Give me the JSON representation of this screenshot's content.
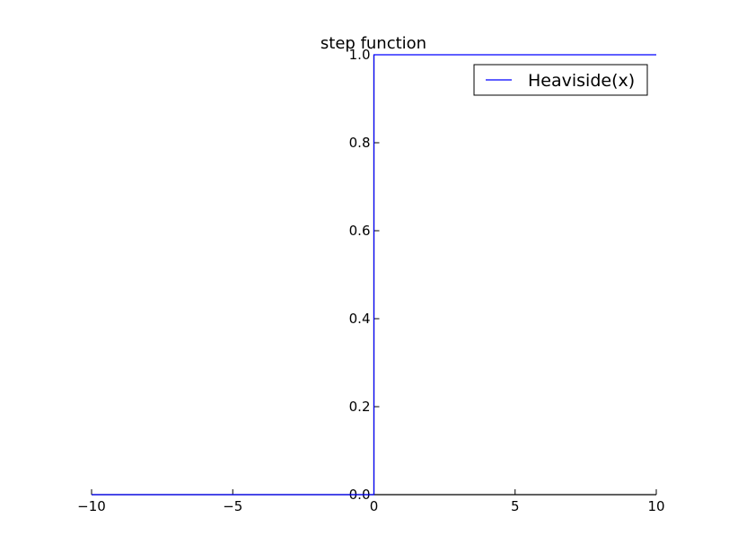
{
  "chart_data": {
    "type": "line",
    "title": "step function",
    "xlabel": "",
    "ylabel": "",
    "xlim": [
      -10,
      10
    ],
    "ylim": [
      0,
      1.0
    ],
    "x_ticks": [
      -10,
      -5,
      0,
      5,
      10
    ],
    "x_tick_labels": [
      "−10",
      "−5",
      "0",
      "5",
      "10"
    ],
    "y_ticks": [
      0.0,
      0.2,
      0.4,
      0.6,
      0.8,
      1.0
    ],
    "y_tick_labels": [
      "0.0",
      "0.2",
      "0.4",
      "0.6",
      "0.8",
      "1.0"
    ],
    "grid": false,
    "legend_position": "top-right",
    "series": [
      {
        "name": "Heaviside(x)",
        "color": "#0000ff",
        "x": [
          -10,
          0,
          0,
          10
        ],
        "y": [
          0,
          0,
          1,
          1
        ]
      }
    ]
  }
}
